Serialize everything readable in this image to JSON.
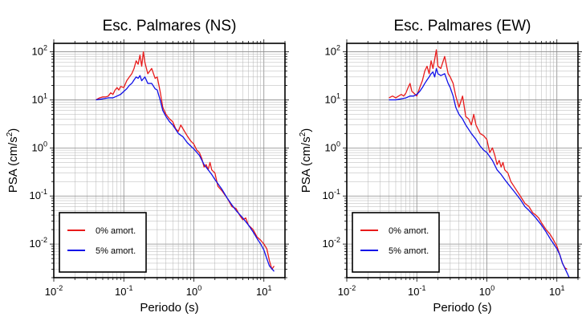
{
  "chart_data": [
    {
      "type": "line",
      "title": "Esc. Palmares (NS)",
      "xlabel": "Periodo (s)",
      "ylabel_main": "PSA (cm/s",
      "ylabel_sup": "2",
      "ylabel_close": ")",
      "xscale": "log",
      "yscale": "log",
      "xlim": [
        0.01,
        20
      ],
      "ylim": [
        0.002,
        150
      ],
      "grid": true,
      "legend_position": "bottom-left",
      "x_ticks": [
        {
          "base": "10",
          "exp": "-2"
        },
        {
          "base": "10",
          "exp": "-1"
        },
        {
          "base": "10",
          "exp": "0"
        },
        {
          "base": "10",
          "exp": "1"
        }
      ],
      "y_ticks": [
        {
          "base": "10",
          "exp": "-2"
        },
        {
          "base": "10",
          "exp": "-1"
        },
        {
          "base": "10",
          "exp": "0"
        },
        {
          "base": "10",
          "exp": "1"
        },
        {
          "base": "10",
          "exp": "2"
        }
      ],
      "series": [
        {
          "name": "0% amort.",
          "color": "#e81b1b",
          "points": [
            [
              0.04,
              10
            ],
            [
              0.045,
              11
            ],
            [
              0.05,
              11.5
            ],
            [
              0.055,
              11.5
            ],
            [
              0.06,
              12
            ],
            [
              0.065,
              14
            ],
            [
              0.07,
              13
            ],
            [
              0.075,
              16
            ],
            [
              0.08,
              18
            ],
            [
              0.085,
              16
            ],
            [
              0.09,
              19
            ],
            [
              0.1,
              18
            ],
            [
              0.11,
              25
            ],
            [
              0.12,
              30
            ],
            [
              0.13,
              35
            ],
            [
              0.14,
              45
            ],
            [
              0.15,
              65
            ],
            [
              0.16,
              55
            ],
            [
              0.17,
              85
            ],
            [
              0.18,
              50
            ],
            [
              0.19,
              100
            ],
            [
              0.2,
              60
            ],
            [
              0.22,
              35
            ],
            [
              0.25,
              45
            ],
            [
              0.28,
              28
            ],
            [
              0.3,
              30
            ],
            [
              0.33,
              15
            ],
            [
              0.36,
              7
            ],
            [
              0.4,
              5
            ],
            [
              0.45,
              4
            ],
            [
              0.5,
              3.5
            ],
            [
              0.55,
              2.5
            ],
            [
              0.6,
              2.2
            ],
            [
              0.65,
              3
            ],
            [
              0.7,
              2.5
            ],
            [
              0.8,
              1.8
            ],
            [
              0.9,
              1.4
            ],
            [
              1.0,
              1.2
            ],
            [
              1.1,
              0.9
            ],
            [
              1.2,
              0.8
            ],
            [
              1.3,
              0.6
            ],
            [
              1.4,
              0.4
            ],
            [
              1.5,
              0.45
            ],
            [
              1.6,
              0.35
            ],
            [
              1.7,
              0.5
            ],
            [
              1.8,
              0.35
            ],
            [
              2.0,
              0.3
            ],
            [
              2.2,
              0.16
            ],
            [
              2.5,
              0.13
            ],
            [
              3.0,
              0.09
            ],
            [
              3.5,
              0.06
            ],
            [
              4.0,
              0.055
            ],
            [
              4.5,
              0.04
            ],
            [
              5.0,
              0.032
            ],
            [
              5.5,
              0.035
            ],
            [
              6.0,
              0.025
            ],
            [
              7.0,
              0.02
            ],
            [
              8.0,
              0.014
            ],
            [
              9.0,
              0.012
            ],
            [
              10.0,
              0.01
            ],
            [
              11.0,
              0.008
            ],
            [
              12.0,
              0.0045
            ],
            [
              13.0,
              0.003
            ],
            [
              14.0,
              0.0035
            ]
          ]
        },
        {
          "name": "5% amort.",
          "color": "#1010e8",
          "points": [
            [
              0.04,
              10
            ],
            [
              0.05,
              10.5
            ],
            [
              0.06,
              11
            ],
            [
              0.07,
              11
            ],
            [
              0.08,
              12
            ],
            [
              0.09,
              13
            ],
            [
              0.1,
              15
            ],
            [
              0.11,
              17
            ],
            [
              0.12,
              20
            ],
            [
              0.13,
              22
            ],
            [
              0.14,
              26
            ],
            [
              0.15,
              30
            ],
            [
              0.16,
              28
            ],
            [
              0.17,
              32
            ],
            [
              0.18,
              25
            ],
            [
              0.2,
              30
            ],
            [
              0.22,
              22
            ],
            [
              0.25,
              22
            ],
            [
              0.28,
              17
            ],
            [
              0.3,
              16
            ],
            [
              0.33,
              10
            ],
            [
              0.36,
              6
            ],
            [
              0.4,
              4.5
            ],
            [
              0.45,
              3.5
            ],
            [
              0.5,
              3
            ],
            [
              0.6,
              2
            ],
            [
              0.7,
              1.7
            ],
            [
              0.8,
              1.3
            ],
            [
              0.9,
              1.1
            ],
            [
              1.0,
              0.95
            ],
            [
              1.2,
              0.7
            ],
            [
              1.4,
              0.45
            ],
            [
              1.6,
              0.35
            ],
            [
              1.8,
              0.28
            ],
            [
              2.0,
              0.22
            ],
            [
              2.5,
              0.14
            ],
            [
              3.0,
              0.09
            ],
            [
              3.5,
              0.065
            ],
            [
              4.0,
              0.05
            ],
            [
              5.0,
              0.035
            ],
            [
              6.0,
              0.025
            ],
            [
              7.0,
              0.018
            ],
            [
              8.0,
              0.013
            ],
            [
              9.0,
              0.01
            ],
            [
              10.0,
              0.0075
            ],
            [
              11.0,
              0.005
            ],
            [
              12.0,
              0.0035
            ],
            [
              14.0,
              0.0027
            ]
          ]
        }
      ]
    },
    {
      "type": "line",
      "title": "Esc. Palmares (EW)",
      "xlabel": "Periodo (s)",
      "ylabel_main": "PSA (cm/s",
      "ylabel_sup": "2",
      "ylabel_close": ")",
      "xscale": "log",
      "yscale": "log",
      "xlim": [
        0.01,
        20
      ],
      "ylim": [
        0.002,
        150
      ],
      "grid": true,
      "legend_position": "bottom-left",
      "x_ticks": [
        {
          "base": "10",
          "exp": "-2"
        },
        {
          "base": "10",
          "exp": "-1"
        },
        {
          "base": "10",
          "exp": "0"
        },
        {
          "base": "10",
          "exp": "1"
        }
      ],
      "y_ticks": [
        {
          "base": "10",
          "exp": "-2"
        },
        {
          "base": "10",
          "exp": "-1"
        },
        {
          "base": "10",
          "exp": "0"
        },
        {
          "base": "10",
          "exp": "1"
        },
        {
          "base": "10",
          "exp": "2"
        }
      ],
      "series": [
        {
          "name": "0% amort.",
          "color": "#e81b1b",
          "points": [
            [
              0.04,
              11
            ],
            [
              0.045,
              12
            ],
            [
              0.05,
              11
            ],
            [
              0.055,
              12
            ],
            [
              0.06,
              13
            ],
            [
              0.065,
              12
            ],
            [
              0.07,
              14
            ],
            [
              0.075,
              18
            ],
            [
              0.08,
              22
            ],
            [
              0.085,
              15
            ],
            [
              0.09,
              14
            ],
            [
              0.1,
              12
            ],
            [
              0.11,
              18
            ],
            [
              0.12,
              25
            ],
            [
              0.13,
              40
            ],
            [
              0.14,
              50
            ],
            [
              0.15,
              35
            ],
            [
              0.16,
              65
            ],
            [
              0.17,
              45
            ],
            [
              0.18,
              70
            ],
            [
              0.19,
              110
            ],
            [
              0.2,
              50
            ],
            [
              0.22,
              45
            ],
            [
              0.25,
              80
            ],
            [
              0.28,
              35
            ],
            [
              0.3,
              30
            ],
            [
              0.33,
              22
            ],
            [
              0.36,
              12
            ],
            [
              0.4,
              7
            ],
            [
              0.45,
              12
            ],
            [
              0.5,
              4.5
            ],
            [
              0.55,
              4
            ],
            [
              0.6,
              3
            ],
            [
              0.65,
              5
            ],
            [
              0.7,
              3
            ],
            [
              0.8,
              2
            ],
            [
              0.9,
              1.8
            ],
            [
              1.0,
              1.5
            ],
            [
              1.1,
              0.8
            ],
            [
              1.2,
              1.0
            ],
            [
              1.3,
              0.7
            ],
            [
              1.4,
              0.45
            ],
            [
              1.5,
              0.55
            ],
            [
              1.6,
              0.4
            ],
            [
              1.7,
              0.5
            ],
            [
              1.8,
              0.35
            ],
            [
              2.0,
              0.3
            ],
            [
              2.2,
              0.2
            ],
            [
              2.5,
              0.15
            ],
            [
              3.0,
              0.1
            ],
            [
              3.5,
              0.07
            ],
            [
              4.0,
              0.06
            ],
            [
              4.5,
              0.045
            ],
            [
              5.0,
              0.04
            ],
            [
              5.5,
              0.035
            ],
            [
              6.0,
              0.028
            ],
            [
              7.0,
              0.02
            ],
            [
              8.0,
              0.016
            ],
            [
              9.0,
              0.012
            ],
            [
              10.0,
              0.009
            ],
            [
              11.0,
              0.006
            ],
            [
              12.0,
              0.004
            ],
            [
              13.0,
              0.0032
            ],
            [
              14.0,
              0.003
            ]
          ]
        },
        {
          "name": "5% amort.",
          "color": "#1010e8",
          "points": [
            [
              0.04,
              10
            ],
            [
              0.05,
              10
            ],
            [
              0.06,
              10.5
            ],
            [
              0.07,
              11
            ],
            [
              0.08,
              12
            ],
            [
              0.09,
              12
            ],
            [
              0.1,
              13
            ],
            [
              0.11,
              15
            ],
            [
              0.12,
              18
            ],
            [
              0.13,
              22
            ],
            [
              0.14,
              26
            ],
            [
              0.15,
              30
            ],
            [
              0.16,
              35
            ],
            [
              0.17,
              38
            ],
            [
              0.18,
              30
            ],
            [
              0.19,
              45
            ],
            [
              0.2,
              35
            ],
            [
              0.22,
              32
            ],
            [
              0.25,
              35
            ],
            [
              0.28,
              22
            ],
            [
              0.3,
              18
            ],
            [
              0.33,
              12
            ],
            [
              0.36,
              7
            ],
            [
              0.4,
              5
            ],
            [
              0.45,
              4
            ],
            [
              0.5,
              3
            ],
            [
              0.6,
              2
            ],
            [
              0.7,
              1.5
            ],
            [
              0.8,
              1.1
            ],
            [
              0.9,
              0.9
            ],
            [
              1.0,
              0.8
            ],
            [
              1.2,
              0.55
            ],
            [
              1.4,
              0.35
            ],
            [
              1.6,
              0.28
            ],
            [
              1.8,
              0.22
            ],
            [
              2.0,
              0.18
            ],
            [
              2.5,
              0.12
            ],
            [
              3.0,
              0.085
            ],
            [
              3.5,
              0.06
            ],
            [
              4.0,
              0.05
            ],
            [
              5.0,
              0.035
            ],
            [
              6.0,
              0.025
            ],
            [
              7.0,
              0.018
            ],
            [
              8.0,
              0.013
            ],
            [
              9.0,
              0.01
            ],
            [
              10.0,
              0.008
            ],
            [
              11.0,
              0.006
            ],
            [
              12.0,
              0.004
            ],
            [
              14.0,
              0.0025
            ],
            [
              15.0,
              0.002
            ]
          ]
        }
      ]
    }
  ]
}
